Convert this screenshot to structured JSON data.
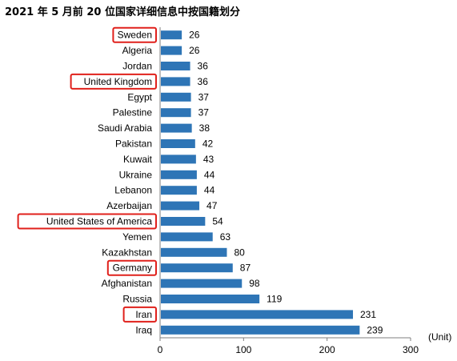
{
  "chart_data": {
    "type": "bar",
    "orientation": "horizontal",
    "title": "2021 年 5 月前 20 位国家详细信息中按国籍划分",
    "unit_label": "(Unit)",
    "categories": [
      "Sweden",
      "Algeria",
      "Jordan",
      "United Kingdom",
      "Egypt",
      "Palestine",
      "Saudi Arabia",
      "Pakistan",
      "Kuwait",
      "Ukraine",
      "Lebanon",
      "Azerbaijan",
      "United States of America",
      "Yemen",
      "Kazakhstan",
      "Germany",
      "Afghanistan",
      "Russia",
      "Iran",
      "Iraq"
    ],
    "values": [
      26,
      26,
      36,
      36,
      37,
      37,
      38,
      42,
      43,
      44,
      44,
      47,
      54,
      63,
      80,
      87,
      98,
      119,
      231,
      239
    ],
    "highlighted": [
      "Sweden",
      "United Kingdom",
      "United States of America",
      "Germany",
      "Iran"
    ],
    "xlim": [
      0,
      300
    ],
    "xticks": [
      0,
      100,
      200,
      300
    ],
    "grid": false,
    "bar_color": "#2e75b6",
    "highlight_color": "#e0201b"
  }
}
